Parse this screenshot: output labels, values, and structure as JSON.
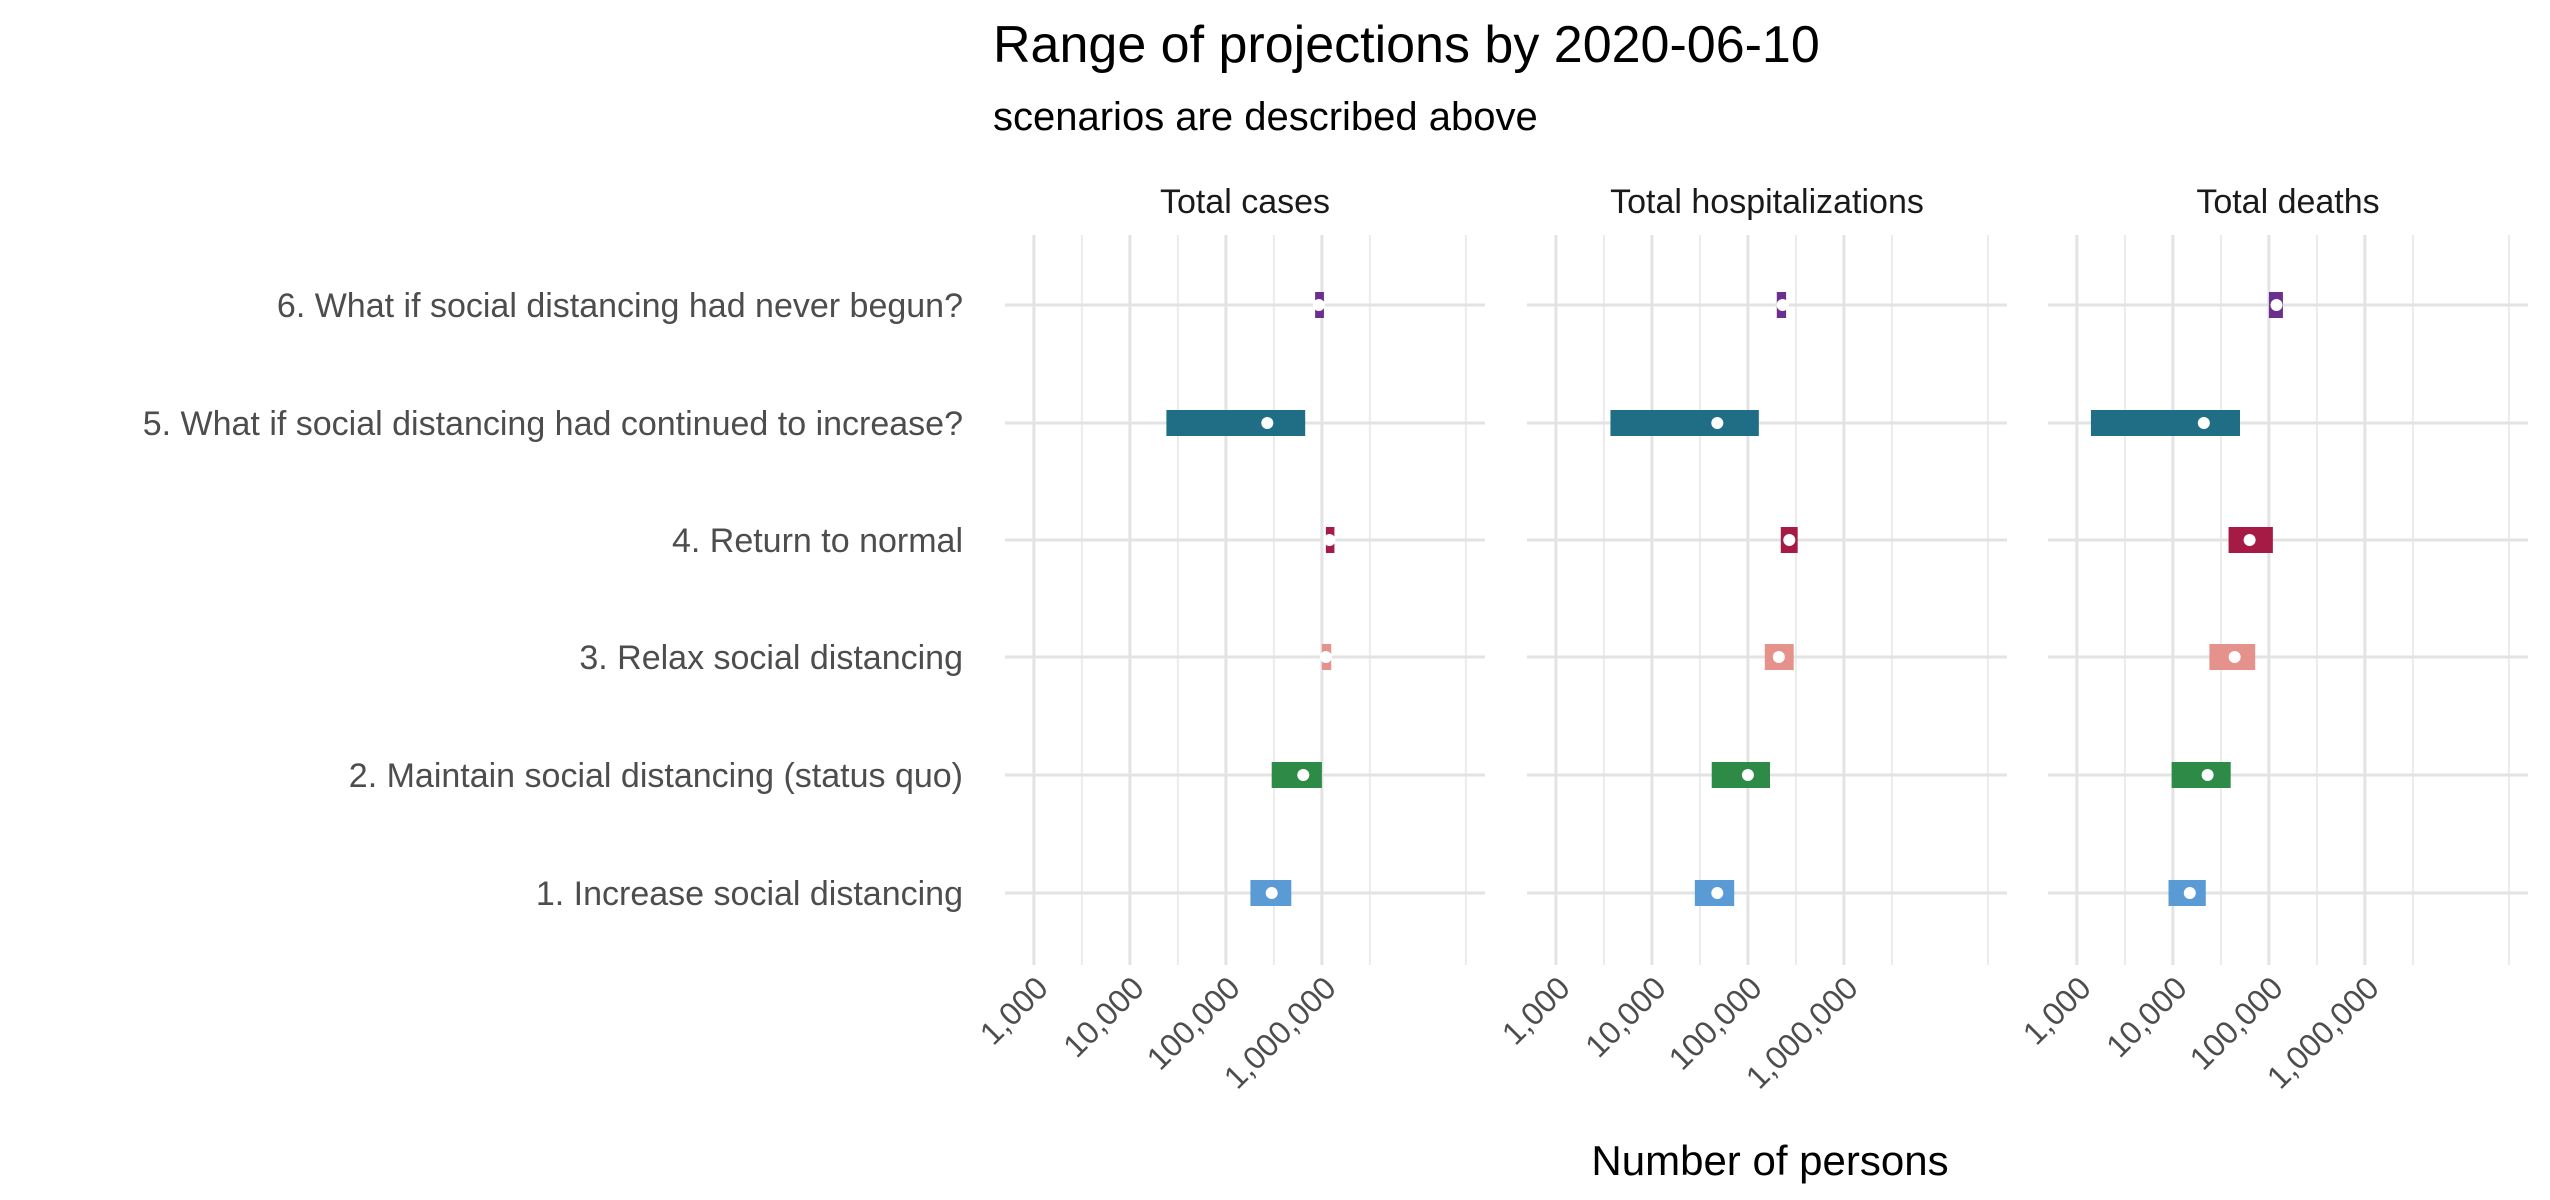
{
  "chart_data": {
    "type": "range",
    "title": "Range of projections by 2020-06-10",
    "subtitle": "scenarios are described above",
    "xlabel": "Number of persons",
    "x_scale": "log10",
    "xlim": [
      500,
      50000000
    ],
    "x_ticks": [
      1000,
      10000,
      100000,
      1000000
    ],
    "x_tick_labels": [
      "1,000",
      "10,000",
      "100,000",
      "1,000,000"
    ],
    "grid": true,
    "categories": [
      "1. Increase social distancing",
      "2. Maintain social distancing (status quo)",
      "3. Relax social distancing",
      "4. Return to normal",
      "5. What if social distancing had continued to increase?",
      "6. What if social distancing had never begun?"
    ],
    "colors": [
      "#5b9bd5",
      "#2e8b47",
      "#e5928c",
      "#a51b45",
      "#1f6e86",
      "#6b2f8f"
    ],
    "panels": [
      {
        "title": "Total cases",
        "series": [
          {
            "low": 180000,
            "mid": 300000,
            "high": 480000
          },
          {
            "low": 300000,
            "mid": 640000,
            "high": 1000000
          },
          {
            "low": 1000000,
            "mid": 1100000,
            "high": 1250000
          },
          {
            "low": 1100000,
            "mid": 1200000,
            "high": 1350000
          },
          {
            "low": 24000,
            "mid": 270000,
            "high": 670000
          },
          {
            "low": 850000,
            "mid": 930000,
            "high": 1050000
          }
        ]
      },
      {
        "title": "Total hospitalizations",
        "series": [
          {
            "low": 28000,
            "mid": 48000,
            "high": 72000
          },
          {
            "low": 42000,
            "mid": 100000,
            "high": 170000
          },
          {
            "low": 150000,
            "mid": 210000,
            "high": 300000
          },
          {
            "low": 220000,
            "mid": 270000,
            "high": 330000
          },
          {
            "low": 3700,
            "mid": 48000,
            "high": 130000
          },
          {
            "low": 200000,
            "mid": 230000,
            "high": 250000
          }
        ]
      },
      {
        "title": "Total deaths",
        "series": [
          {
            "low": 9000,
            "mid": 15000,
            "high": 22000
          },
          {
            "low": 9700,
            "mid": 23000,
            "high": 40000
          },
          {
            "low": 24000,
            "mid": 44000,
            "high": 72000
          },
          {
            "low": 38000,
            "mid": 63000,
            "high": 110000
          },
          {
            "low": 1400,
            "mid": 21000,
            "high": 50000
          },
          {
            "low": 100000,
            "mid": 120000,
            "high": 140000
          }
        ]
      }
    ]
  }
}
